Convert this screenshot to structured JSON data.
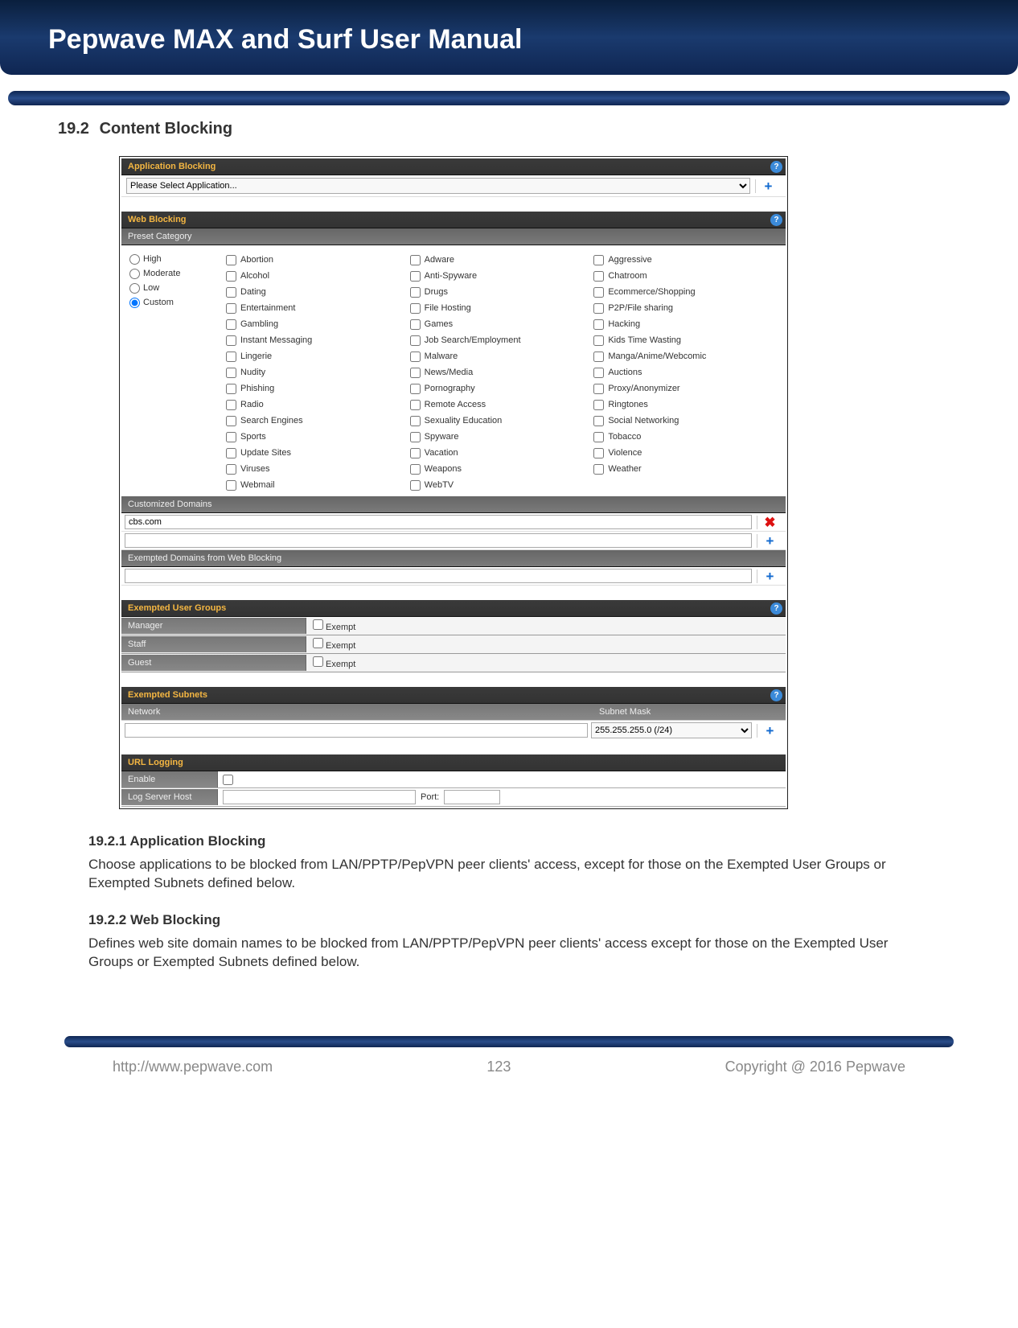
{
  "header": {
    "title": "Pepwave MAX and Surf User Manual"
  },
  "section": {
    "number": "19.2",
    "title": "Content Blocking"
  },
  "app_blocking": {
    "title": "Application Blocking",
    "select_placeholder": "Please Select Application..."
  },
  "web_blocking": {
    "title": "Web Blocking",
    "preset_title": "Preset Category",
    "levels": [
      "High",
      "Moderate",
      "Low",
      "Custom"
    ],
    "level_selected": "Custom",
    "col2": [
      "Abortion",
      "Alcohol",
      "Dating",
      "Entertainment",
      "Gambling",
      "Instant Messaging",
      "Lingerie",
      "Nudity",
      "Phishing",
      "Radio",
      "Search Engines",
      "Sports",
      "Update Sites",
      "Viruses",
      "Webmail"
    ],
    "col3": [
      "Adware",
      "Anti-Spyware",
      "Drugs",
      "File Hosting",
      "Games",
      "Job Search/Employment",
      "Malware",
      "News/Media",
      "Pornography",
      "Remote Access",
      "Sexuality Education",
      "Spyware",
      "Vacation",
      "Weapons",
      "WebTV"
    ],
    "col4": [
      "Aggressive",
      "Chatroom",
      "Ecommerce/Shopping",
      "P2P/File sharing",
      "Hacking",
      "Kids Time Wasting",
      "Manga/Anime/Webcomic",
      "Auctions",
      "Proxy/Anonymizer",
      "Ringtones",
      "Social Networking",
      "Tobacco",
      "Violence",
      "Weather"
    ],
    "customized_title": "Customized Domains",
    "customized_value": "cbs.com",
    "exempted_title": "Exempted Domains from Web Blocking"
  },
  "exempted_groups": {
    "title": "Exempted User Groups",
    "rows": [
      {
        "label": "Manager",
        "opt": "Exempt"
      },
      {
        "label": "Staff",
        "opt": "Exempt"
      },
      {
        "label": "Guest",
        "opt": "Exempt"
      }
    ]
  },
  "exempted_subnets": {
    "title": "Exempted Subnets",
    "col_network": "Network",
    "col_mask": "Subnet Mask",
    "mask_value": "255.255.255.0 (/24)"
  },
  "url_logging": {
    "title": "URL Logging",
    "enable_label": "Enable",
    "host_label": "Log Server Host",
    "port_label": "Port:"
  },
  "sub1": {
    "num": "19.2.1",
    "title": "Application Blocking",
    "text": "Choose applications to be blocked from LAN/PPTP/PepVPN peer clients' access, except for those on the Exempted User Groups or Exempted Subnets defined below."
  },
  "sub2": {
    "num": "19.2.2",
    "title": "Web Blocking",
    "text": "Defines web site domain names to be blocked from LAN/PPTP/PepVPN peer clients' access except for those on the Exempted User Groups or Exempted Subnets defined below."
  },
  "footer": {
    "url": "http://www.pepwave.com",
    "page": "123",
    "copyright": "Copyright @ 2016 Pepwave"
  }
}
